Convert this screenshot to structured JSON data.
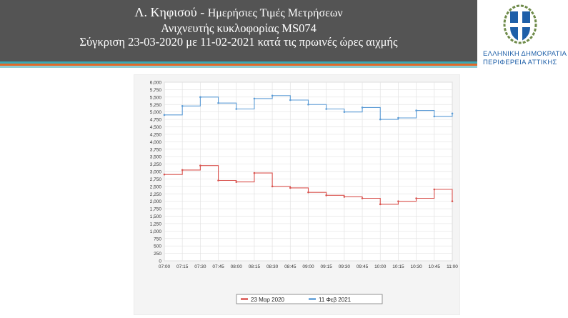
{
  "header": {
    "title_main": "Λ. Κηφισού -",
    "title_sub": "Ημερήσιες Τιμές Μετρήσεων",
    "detector": "Ανιχνευτής κυκλοφορίας MS074",
    "comparison": "Σύγκριση 23-03-2020 με 11-02-2021 κατά τις πρωινές ώρες αιχμής"
  },
  "colors": {
    "header_bg": "#545454",
    "stripe_teal": "#3aa8b4",
    "stripe_orange": "#e06a2a",
    "series_2020": "#d9534f",
    "series_2021": "#5b9bd5"
  },
  "logo": {
    "line1": "ΕΛΛΗΝΙΚΗ ΔΗΜΟΚΡΑΤΙΑ",
    "line2": "ΠΕΡΙΦΕΡΕΙΑ ΑΤΤΙΚΗΣ"
  },
  "chart_data": {
    "type": "line",
    "title": "",
    "xlabel": "",
    "ylabel": "",
    "x_ticks": [
      "07:00",
      "07:15",
      "07:30",
      "07:45",
      "08:00",
      "08:15",
      "08:30",
      "08:45",
      "09:00",
      "09:15",
      "09:30",
      "09:45",
      "10:00",
      "10:15",
      "10:30",
      "10:45",
      "11:00"
    ],
    "y_ticks": [
      "0",
      "250",
      "500",
      "750",
      "1,000",
      "1,250",
      "1,500",
      "1,750",
      "2,000",
      "2,250",
      "2,500",
      "2,750",
      "3,000",
      "3,250",
      "3,500",
      "3,750",
      "4,000",
      "4,250",
      "4,500",
      "4,750",
      "5,000",
      "5,250",
      "5,500",
      "5,750",
      "6,000"
    ],
    "ylim": [
      0,
      6000
    ],
    "xlim_minutes": [
      0,
      240
    ],
    "grid": true,
    "legend_position": "bottom-center",
    "series": [
      {
        "name": "23 Μαρ 2020",
        "color": "#d9534f",
        "x_minutes": [
          0,
          15,
          30,
          45,
          60,
          75,
          90,
          105,
          120,
          135,
          150,
          165,
          180,
          195,
          210,
          225,
          240
        ],
        "values": [
          2900,
          3050,
          3200,
          2700,
          2650,
          2950,
          2500,
          2450,
          2300,
          2200,
          2150,
          2100,
          1900,
          2000,
          2100,
          2400,
          2000
        ]
      },
      {
        "name": "11 Φεβ 2021",
        "color": "#5b9bd5",
        "x_minutes": [
          0,
          15,
          30,
          45,
          60,
          75,
          90,
          105,
          120,
          135,
          150,
          165,
          180,
          195,
          210,
          225,
          240
        ],
        "values": [
          4900,
          5200,
          5500,
          5300,
          5100,
          5450,
          5550,
          5400,
          5250,
          5100,
          5000,
          5150,
          4750,
          4800,
          5050,
          4850,
          4950
        ]
      }
    ]
  }
}
